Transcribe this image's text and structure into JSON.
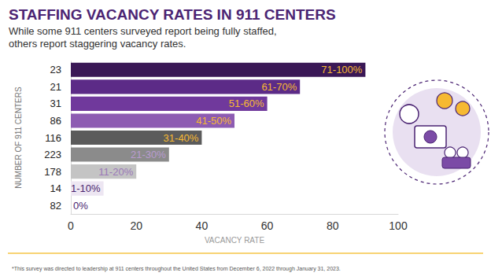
{
  "chart_data": {
    "type": "bar",
    "orientation": "horizontal",
    "title": "STAFFING VACANCY RATES IN 911 CENTERS",
    "subtitle": "While some 911 centers surveyed report being fully staffed,\nothers report staggering vacancy rates.",
    "xlabel": "VACANCY RATE",
    "ylabel": "NUMBER OF 911 CENTERS",
    "annotations": [
      "*This survey was directed to leadership at 911 centers throughout the United States from December 6, 2022 through January 31, 2023."
    ],
    "categories": [
      "71-100%",
      "61-70%",
      "51-60%",
      "41-50%",
      "31-40%",
      "21-30%",
      "11-20%",
      "1-10%",
      "0%"
    ],
    "counts": [
      23,
      21,
      31,
      86,
      116,
      223,
      178,
      14,
      82
    ],
    "values": [
      90,
      70,
      60,
      50,
      40,
      30,
      20,
      10,
      0
    ],
    "colors": [
      "#3a1856",
      "#5c2b87",
      "#70399c",
      "#8d5cb2",
      "#5b5b5b",
      "#8b8b8b",
      "#c4c4c4",
      "#ede6f2",
      "#ede6f2"
    ],
    "xlim": [
      0,
      100
    ],
    "xticks": [
      0,
      20,
      40,
      60,
      80,
      100
    ],
    "grid": false
  }
}
